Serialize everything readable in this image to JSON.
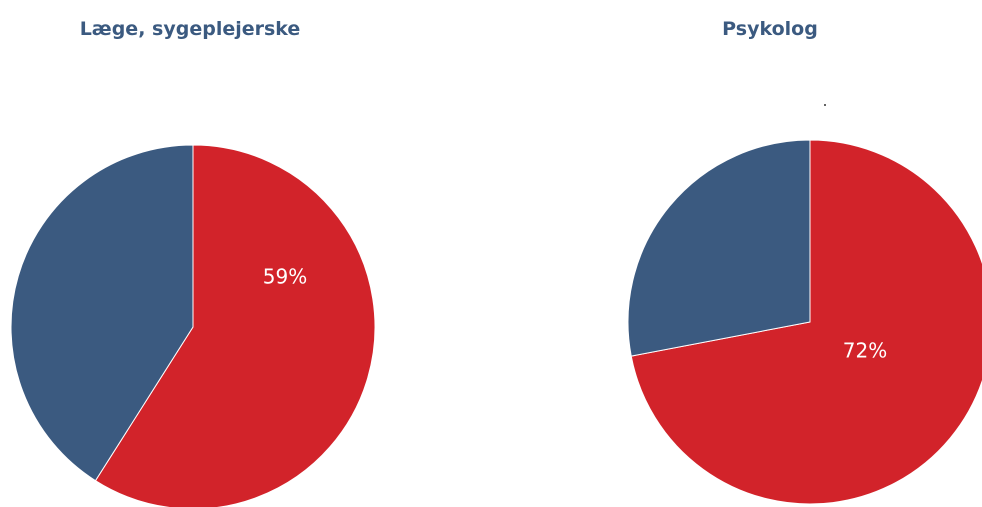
{
  "chart_data": [
    {
      "type": "pie",
      "title": "Læge, sygeplejerske",
      "slices": [
        {
          "value": 59,
          "label": "59%",
          "color": "#d2232a"
        },
        {
          "value": 41,
          "label": "",
          "color": "#3b5a80"
        }
      ]
    },
    {
      "type": "pie",
      "title": "Psykolog",
      "slices": [
        {
          "value": 72,
          "label": "72%",
          "color": "#d2232a"
        },
        {
          "value": 28,
          "label": "",
          "color": "#3b5a80"
        }
      ]
    }
  ]
}
